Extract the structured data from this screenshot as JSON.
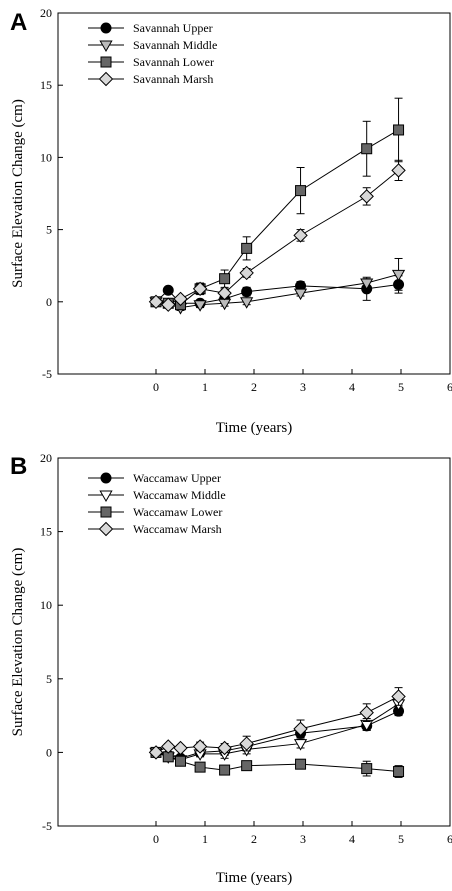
{
  "chart_data": [
    {
      "panel": "A",
      "type": "line",
      "xlabel": "Time (years)",
      "ylabel": "Surface Elevation Change (cm)",
      "xlim": [
        -2,
        6
      ],
      "ylim": [
        -5,
        20
      ],
      "xticks": [
        0,
        1,
        2,
        3,
        4,
        5,
        6
      ],
      "yticks": [
        -5,
        0,
        5,
        10,
        15,
        20
      ],
      "legend_position": "top-left",
      "grid": false,
      "series": [
        {
          "name": "Savannah Upper",
          "marker": "circle",
          "fill": "#000000",
          "x": [
            0,
            0.25,
            0.5,
            0.9,
            1.4,
            1.85,
            2.95,
            4.3,
            4.95
          ],
          "y": [
            0,
            0.8,
            -0.1,
            -0.1,
            0.2,
            0.7,
            1.1,
            0.9,
            1.2
          ],
          "err": [
            0.1,
            0.2,
            0.2,
            0.2,
            0.3,
            0.3,
            0.3,
            0.8,
            0.6
          ]
        },
        {
          "name": "Savannah Middle",
          "marker": "triangle-down",
          "fill": "#bbbbbb",
          "x": [
            0,
            0.25,
            0.5,
            0.9,
            1.4,
            1.85,
            2.95,
            4.3,
            4.95
          ],
          "y": [
            0,
            -0.2,
            -0.4,
            -0.2,
            -0.1,
            0.0,
            0.6,
            1.3,
            1.9
          ],
          "err": [
            0.1,
            0.1,
            0.2,
            0.2,
            0.2,
            0.2,
            0.2,
            0.3,
            1.1
          ]
        },
        {
          "name": "Savannah Lower",
          "marker": "square",
          "fill": "#666666",
          "x": [
            0,
            0.25,
            0.5,
            0.9,
            1.4,
            1.85,
            2.95,
            4.3,
            4.95
          ],
          "y": [
            0,
            -0.1,
            -0.2,
            0.9,
            1.6,
            3.7,
            7.7,
            10.6,
            11.9
          ],
          "err": [
            0.1,
            0.2,
            0.2,
            0.4,
            0.6,
            0.8,
            1.6,
            1.9,
            2.2
          ]
        },
        {
          "name": "Savannah Marsh",
          "marker": "diamond",
          "fill": "#d8d8d8",
          "x": [
            0,
            0.25,
            0.5,
            0.9,
            1.4,
            1.85,
            2.95,
            4.3,
            4.95
          ],
          "y": [
            0,
            -0.2,
            0.2,
            0.9,
            0.6,
            2.0,
            4.6,
            7.3,
            9.1
          ],
          "err": [
            0.1,
            0.1,
            0.2,
            0.3,
            0.3,
            0.3,
            0.4,
            0.6,
            0.7
          ]
        }
      ]
    },
    {
      "panel": "B",
      "type": "line",
      "xlabel": "Time (years)",
      "ylabel": "Surface Elevation Change (cm)",
      "xlim": [
        -2,
        6
      ],
      "ylim": [
        -5,
        20
      ],
      "xticks": [
        0,
        1,
        2,
        3,
        4,
        5,
        6
      ],
      "yticks": [
        -5,
        0,
        5,
        10,
        15,
        20
      ],
      "legend_position": "top-left",
      "grid": false,
      "series": [
        {
          "name": "Waccamaw Upper",
          "marker": "circle",
          "fill": "#000000",
          "x": [
            0,
            0.25,
            0.5,
            0.9,
            1.4,
            1.85,
            2.95,
            4.3,
            4.95
          ],
          "y": [
            0,
            -0.2,
            -0.4,
            0.0,
            0.1,
            0.4,
            1.3,
            1.8,
            2.8
          ],
          "err": [
            0.1,
            0.1,
            0.2,
            0.2,
            0.3,
            0.3,
            0.3,
            0.3,
            0.3
          ]
        },
        {
          "name": "Waccamaw Middle",
          "marker": "triangle-down",
          "fill": "#ffffff",
          "x": [
            0,
            0.25,
            0.5,
            0.9,
            1.4,
            1.85,
            2.95,
            4.3,
            4.95
          ],
          "y": [
            0,
            -0.3,
            -0.5,
            -0.1,
            -0.1,
            0.2,
            0.6,
            1.9,
            3.3
          ],
          "err": [
            0.1,
            0.2,
            0.2,
            0.2,
            0.3,
            0.3,
            0.3,
            0.4,
            0.4
          ]
        },
        {
          "name": "Waccamaw Lower",
          "marker": "square",
          "fill": "#666666",
          "x": [
            0,
            0.25,
            0.5,
            0.9,
            1.4,
            1.85,
            2.95,
            4.3,
            4.95
          ],
          "y": [
            0,
            -0.3,
            -0.6,
            -1.0,
            -1.2,
            -0.9,
            -0.8,
            -1.1,
            -1.3
          ],
          "err": [
            0.1,
            0.2,
            0.2,
            0.2,
            0.2,
            0.2,
            0.2,
            0.5,
            0.4
          ]
        },
        {
          "name": "Waccamaw Marsh",
          "marker": "diamond",
          "fill": "#d8d8d8",
          "x": [
            0,
            0.25,
            0.5,
            0.9,
            1.4,
            1.85,
            2.95,
            4.3,
            4.95
          ],
          "y": [
            0,
            0.4,
            0.3,
            0.4,
            0.3,
            0.6,
            1.6,
            2.7,
            3.8
          ],
          "err": [
            0.1,
            0.2,
            0.2,
            0.3,
            0.3,
            0.5,
            0.6,
            0.6,
            0.6
          ]
        }
      ]
    }
  ]
}
